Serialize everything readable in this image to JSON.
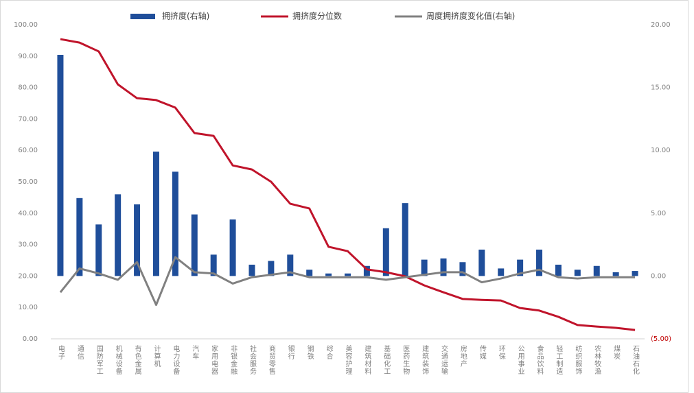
{
  "chart_data": {
    "type": "combo",
    "categories": [
      "电子",
      "通信",
      "国防军工",
      "机械设备",
      "有色金属",
      "计算机",
      "电力设备",
      "汽车",
      "家用电器",
      "非银金融",
      "社会服务",
      "商贸零售",
      "银行",
      "钢铁",
      "综合",
      "美容护理",
      "建筑材料",
      "基础化工",
      "医药生物",
      "建筑装饰",
      "交通运输",
      "房地产",
      "传媒",
      "环保",
      "公用事业",
      "食品饮料",
      "轻工制造",
      "纺织服饰",
      "农林牧渔",
      "煤炭",
      "石油石化"
    ],
    "series": [
      {
        "name": "拥挤度(右轴)",
        "type": "bar",
        "axis": "y2",
        "color": "#1f4e9a",
        "values": [
          17.6,
          6.2,
          4.1,
          6.5,
          5.7,
          9.9,
          8.3,
          4.9,
          1.7,
          4.5,
          0.9,
          1.2,
          1.7,
          0.5,
          0.2,
          0.2,
          0.8,
          3.8,
          5.8,
          1.3,
          1.4,
          1.1,
          2.1,
          0.6,
          1.3,
          2.1,
          0.9,
          0.5,
          0.8,
          0.3,
          0.4
        ]
      },
      {
        "name": "拥挤度分位数",
        "type": "line",
        "axis": "y",
        "color": "#c0142b",
        "values": [
          95.4,
          94.3,
          91.5,
          81.0,
          76.6,
          76.0,
          73.6,
          65.5,
          64.6,
          55.2,
          53.9,
          50.0,
          43.0,
          41.5,
          29.3,
          27.9,
          22.1,
          21.2,
          19.9,
          17.0,
          14.8,
          12.7,
          12.4,
          12.2,
          9.8,
          9.0,
          7.0,
          4.4,
          3.9,
          3.5,
          2.8
        ]
      },
      {
        "name": "周度拥挤度变化值(右轴)",
        "type": "line",
        "axis": "y2",
        "color": "#808080",
        "values": [
          -1.3,
          0.6,
          0.2,
          -0.3,
          1.1,
          -2.3,
          1.5,
          0.3,
          0.2,
          -0.6,
          -0.1,
          0.1,
          0.3,
          -0.1,
          -0.1,
          -0.1,
          -0.1,
          -0.3,
          -0.1,
          0.1,
          0.3,
          0.3,
          -0.5,
          -0.2,
          0.2,
          0.5,
          -0.1,
          -0.2,
          -0.1,
          -0.1,
          -0.1
        ]
      }
    ],
    "ylim": [
      0,
      100
    ],
    "yticks": [
      {
        "value": 0,
        "label": "0.00"
      },
      {
        "value": 10,
        "label": "10.00"
      },
      {
        "value": 20,
        "label": "20.00"
      },
      {
        "value": 30,
        "label": "30.00"
      },
      {
        "value": 40,
        "label": "40.00"
      },
      {
        "value": 50,
        "label": "50.00"
      },
      {
        "value": 60,
        "label": "60.00"
      },
      {
        "value": 70,
        "label": "70.00"
      },
      {
        "value": 80,
        "label": "80.00"
      },
      {
        "value": 90,
        "label": "90.00"
      },
      {
        "value": 100,
        "label": "100.00"
      }
    ],
    "y2lim": [
      -5,
      20
    ],
    "y2ticks": [
      {
        "value": -5,
        "label": "(5.00)"
      },
      {
        "value": 0,
        "label": "0.00"
      },
      {
        "value": 5,
        "label": "5.00"
      },
      {
        "value": 10,
        "label": "10.00"
      },
      {
        "value": 15,
        "label": "15.00"
      },
      {
        "value": 20,
        "label": "20.00"
      }
    ],
    "grid": false,
    "legend": "top"
  }
}
